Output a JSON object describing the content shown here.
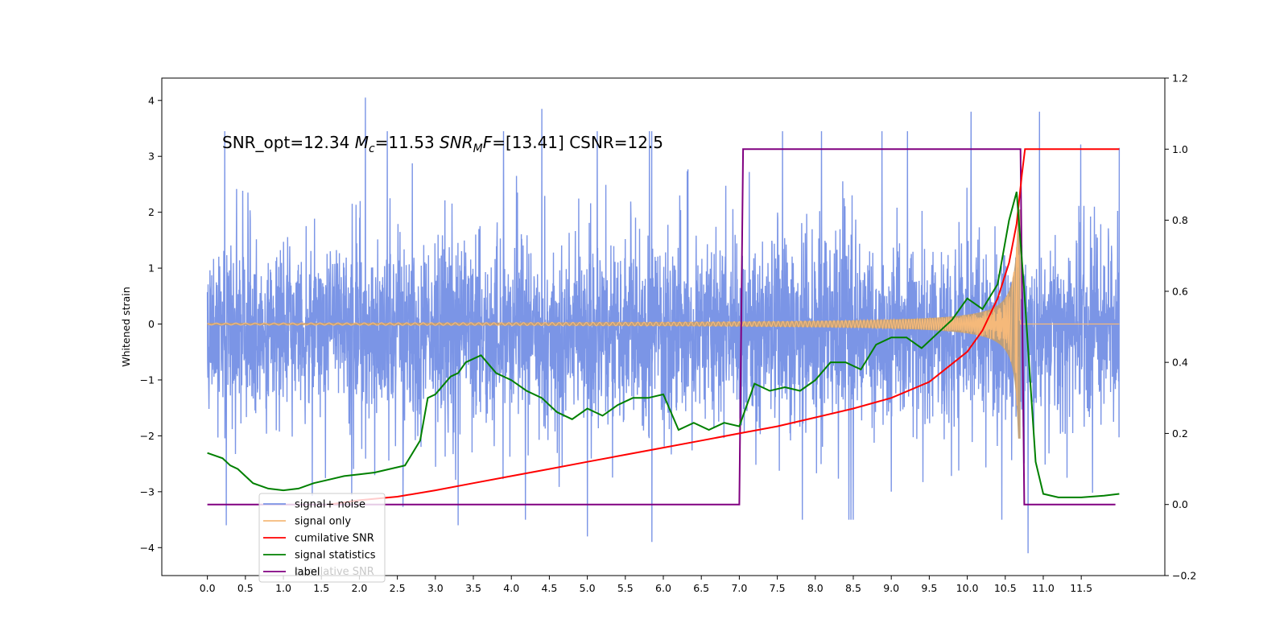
{
  "chart_data": {
    "type": "line",
    "title": "",
    "annotation": {
      "prefix": "SNR_opt=12.34 ",
      "mc_symbol": "M",
      "mc_sub": "c",
      "mc_value": "=11.53  ",
      "snr_symbol": "SNR",
      "snr_sub": "M",
      "snr_f": "F",
      "snr_value": "=[13.41] CSNR=12.5"
    },
    "xlabel": "",
    "ylabel": "Whitened strain",
    "y2label": "",
    "xlim": [
      -0.6,
      12.6
    ],
    "ylim": [
      -4.5,
      4.4
    ],
    "y2lim": [
      -0.2,
      1.2
    ],
    "x_ticks": [
      0.0,
      0.5,
      1.0,
      1.5,
      2.0,
      2.5,
      3.0,
      3.5,
      4.0,
      4.5,
      5.0,
      5.5,
      6.0,
      6.5,
      7.0,
      7.5,
      8.0,
      8.5,
      9.0,
      9.5,
      10.0,
      10.5,
      11.0,
      11.5
    ],
    "x_tick_labels": [
      "0.0",
      "0.5",
      "1.0",
      "1.5",
      "2.0",
      "2.5",
      "3.0",
      "3.5",
      "4.0",
      "4.5",
      "5.0",
      "5.5",
      "6.0",
      "6.5",
      "7.0",
      "7.5",
      "8.0",
      "8.5",
      "9.0",
      "9.5",
      "10.0",
      "10.5",
      "11.0",
      "11.5"
    ],
    "y_ticks": [
      4,
      3,
      2,
      1,
      0,
      -1,
      -2,
      -3,
      -4
    ],
    "y_tick_labels": [
      "4",
      "3",
      "2",
      "1",
      "0",
      "−1",
      "−2",
      "−3",
      "−4"
    ],
    "y2_ticks": [
      1.2,
      1.0,
      0.8,
      0.6,
      0.4,
      0.2,
      0.0,
      -0.2
    ],
    "y2_tick_labels": [
      "1.2",
      "1.0",
      "0.8",
      "0.6",
      "0.4",
      "0.2",
      "0.0",
      "−0.2"
    ],
    "legend_position": "lower-left",
    "series": [
      {
        "name": "signal+ noise",
        "axis": "left",
        "color": "#7b95e6",
        "x_range": [
          0.0,
          12.0
        ],
        "y_band": [
          -2.0,
          1.7
        ],
        "y_extremes": [
          -4.1,
          4.05
        ],
        "notable_peaks": [
          [
            0.25,
            -3.6
          ],
          [
            2.08,
            4.05
          ],
          [
            3.3,
            -3.6
          ],
          [
            4.4,
            3.85
          ],
          [
            5.0,
            -3.8
          ],
          [
            5.85,
            -3.9
          ],
          [
            8.5,
            -3.5
          ],
          [
            9.0,
            -3.0
          ],
          [
            10.05,
            3.8
          ],
          [
            10.8,
            -4.1
          ],
          [
            10.95,
            3.8
          ]
        ]
      },
      {
        "name": "signal only",
        "axis": "left",
        "color": "#f5b97a",
        "x_range": [
          0.0,
          12.0
        ],
        "chirp_end": 10.7,
        "amplitude_at_end": 2.05,
        "amplitude_at_start": 0.01
      },
      {
        "name": "cumilative SNR",
        "axis": "right",
        "color": "#ff0000",
        "x": [
          1.6,
          2.0,
          2.5,
          3.0,
          3.5,
          4.0,
          4.5,
          5.0,
          5.5,
          6.0,
          6.5,
          7.0,
          7.5,
          8.0,
          8.5,
          9.0,
          9.5,
          10.0,
          10.2,
          10.4,
          10.55,
          10.65,
          10.72,
          10.76,
          12.0
        ],
        "y": [
          0.0,
          0.012,
          0.022,
          0.04,
          0.06,
          0.08,
          0.1,
          0.12,
          0.14,
          0.16,
          0.18,
          0.2,
          0.22,
          0.245,
          0.27,
          0.3,
          0.345,
          0.43,
          0.49,
          0.58,
          0.68,
          0.79,
          0.93,
          1.0,
          1.0
        ]
      },
      {
        "name": "signal statistics",
        "axis": "right",
        "color": "#008000",
        "x": [
          0.0,
          0.2,
          0.3,
          0.4,
          0.6,
          0.8,
          1.0,
          1.2,
          1.4,
          1.6,
          1.8,
          2.0,
          2.2,
          2.4,
          2.6,
          2.8,
          2.9,
          3.0,
          3.2,
          3.3,
          3.4,
          3.6,
          3.8,
          4.0,
          4.2,
          4.4,
          4.6,
          4.8,
          5.0,
          5.2,
          5.4,
          5.6,
          5.8,
          6.0,
          6.2,
          6.4,
          6.6,
          6.8,
          7.0,
          7.2,
          7.4,
          7.6,
          7.8,
          8.0,
          8.2,
          8.4,
          8.6,
          8.8,
          9.0,
          9.2,
          9.4,
          9.6,
          9.8,
          10.0,
          10.2,
          10.4,
          10.55,
          10.65,
          10.75,
          10.9,
          11.0,
          11.2,
          11.5,
          11.8,
          12.0
        ],
        "y": [
          0.145,
          0.13,
          0.11,
          0.1,
          0.06,
          0.045,
          0.04,
          0.045,
          0.06,
          0.07,
          0.08,
          0.085,
          0.09,
          0.1,
          0.11,
          0.18,
          0.3,
          0.31,
          0.36,
          0.37,
          0.4,
          0.42,
          0.37,
          0.35,
          0.32,
          0.3,
          0.26,
          0.24,
          0.27,
          0.25,
          0.28,
          0.3,
          0.3,
          0.31,
          0.21,
          0.23,
          0.21,
          0.23,
          0.22,
          0.34,
          0.32,
          0.33,
          0.32,
          0.35,
          0.4,
          0.4,
          0.38,
          0.45,
          0.47,
          0.47,
          0.44,
          0.48,
          0.52,
          0.58,
          0.55,
          0.62,
          0.8,
          0.88,
          0.6,
          0.12,
          0.03,
          0.02,
          0.02,
          0.025,
          0.03
        ]
      },
      {
        "name": "label",
        "axis": "right",
        "color": "#800080",
        "x": [
          0.0,
          7.0,
          7.05,
          10.7,
          10.75,
          11.95
        ],
        "y": [
          0.0,
          0.0,
          1.0,
          1.0,
          0.0,
          0.0
        ]
      }
    ],
    "legend_overlap_text": "cumilative SNR"
  }
}
